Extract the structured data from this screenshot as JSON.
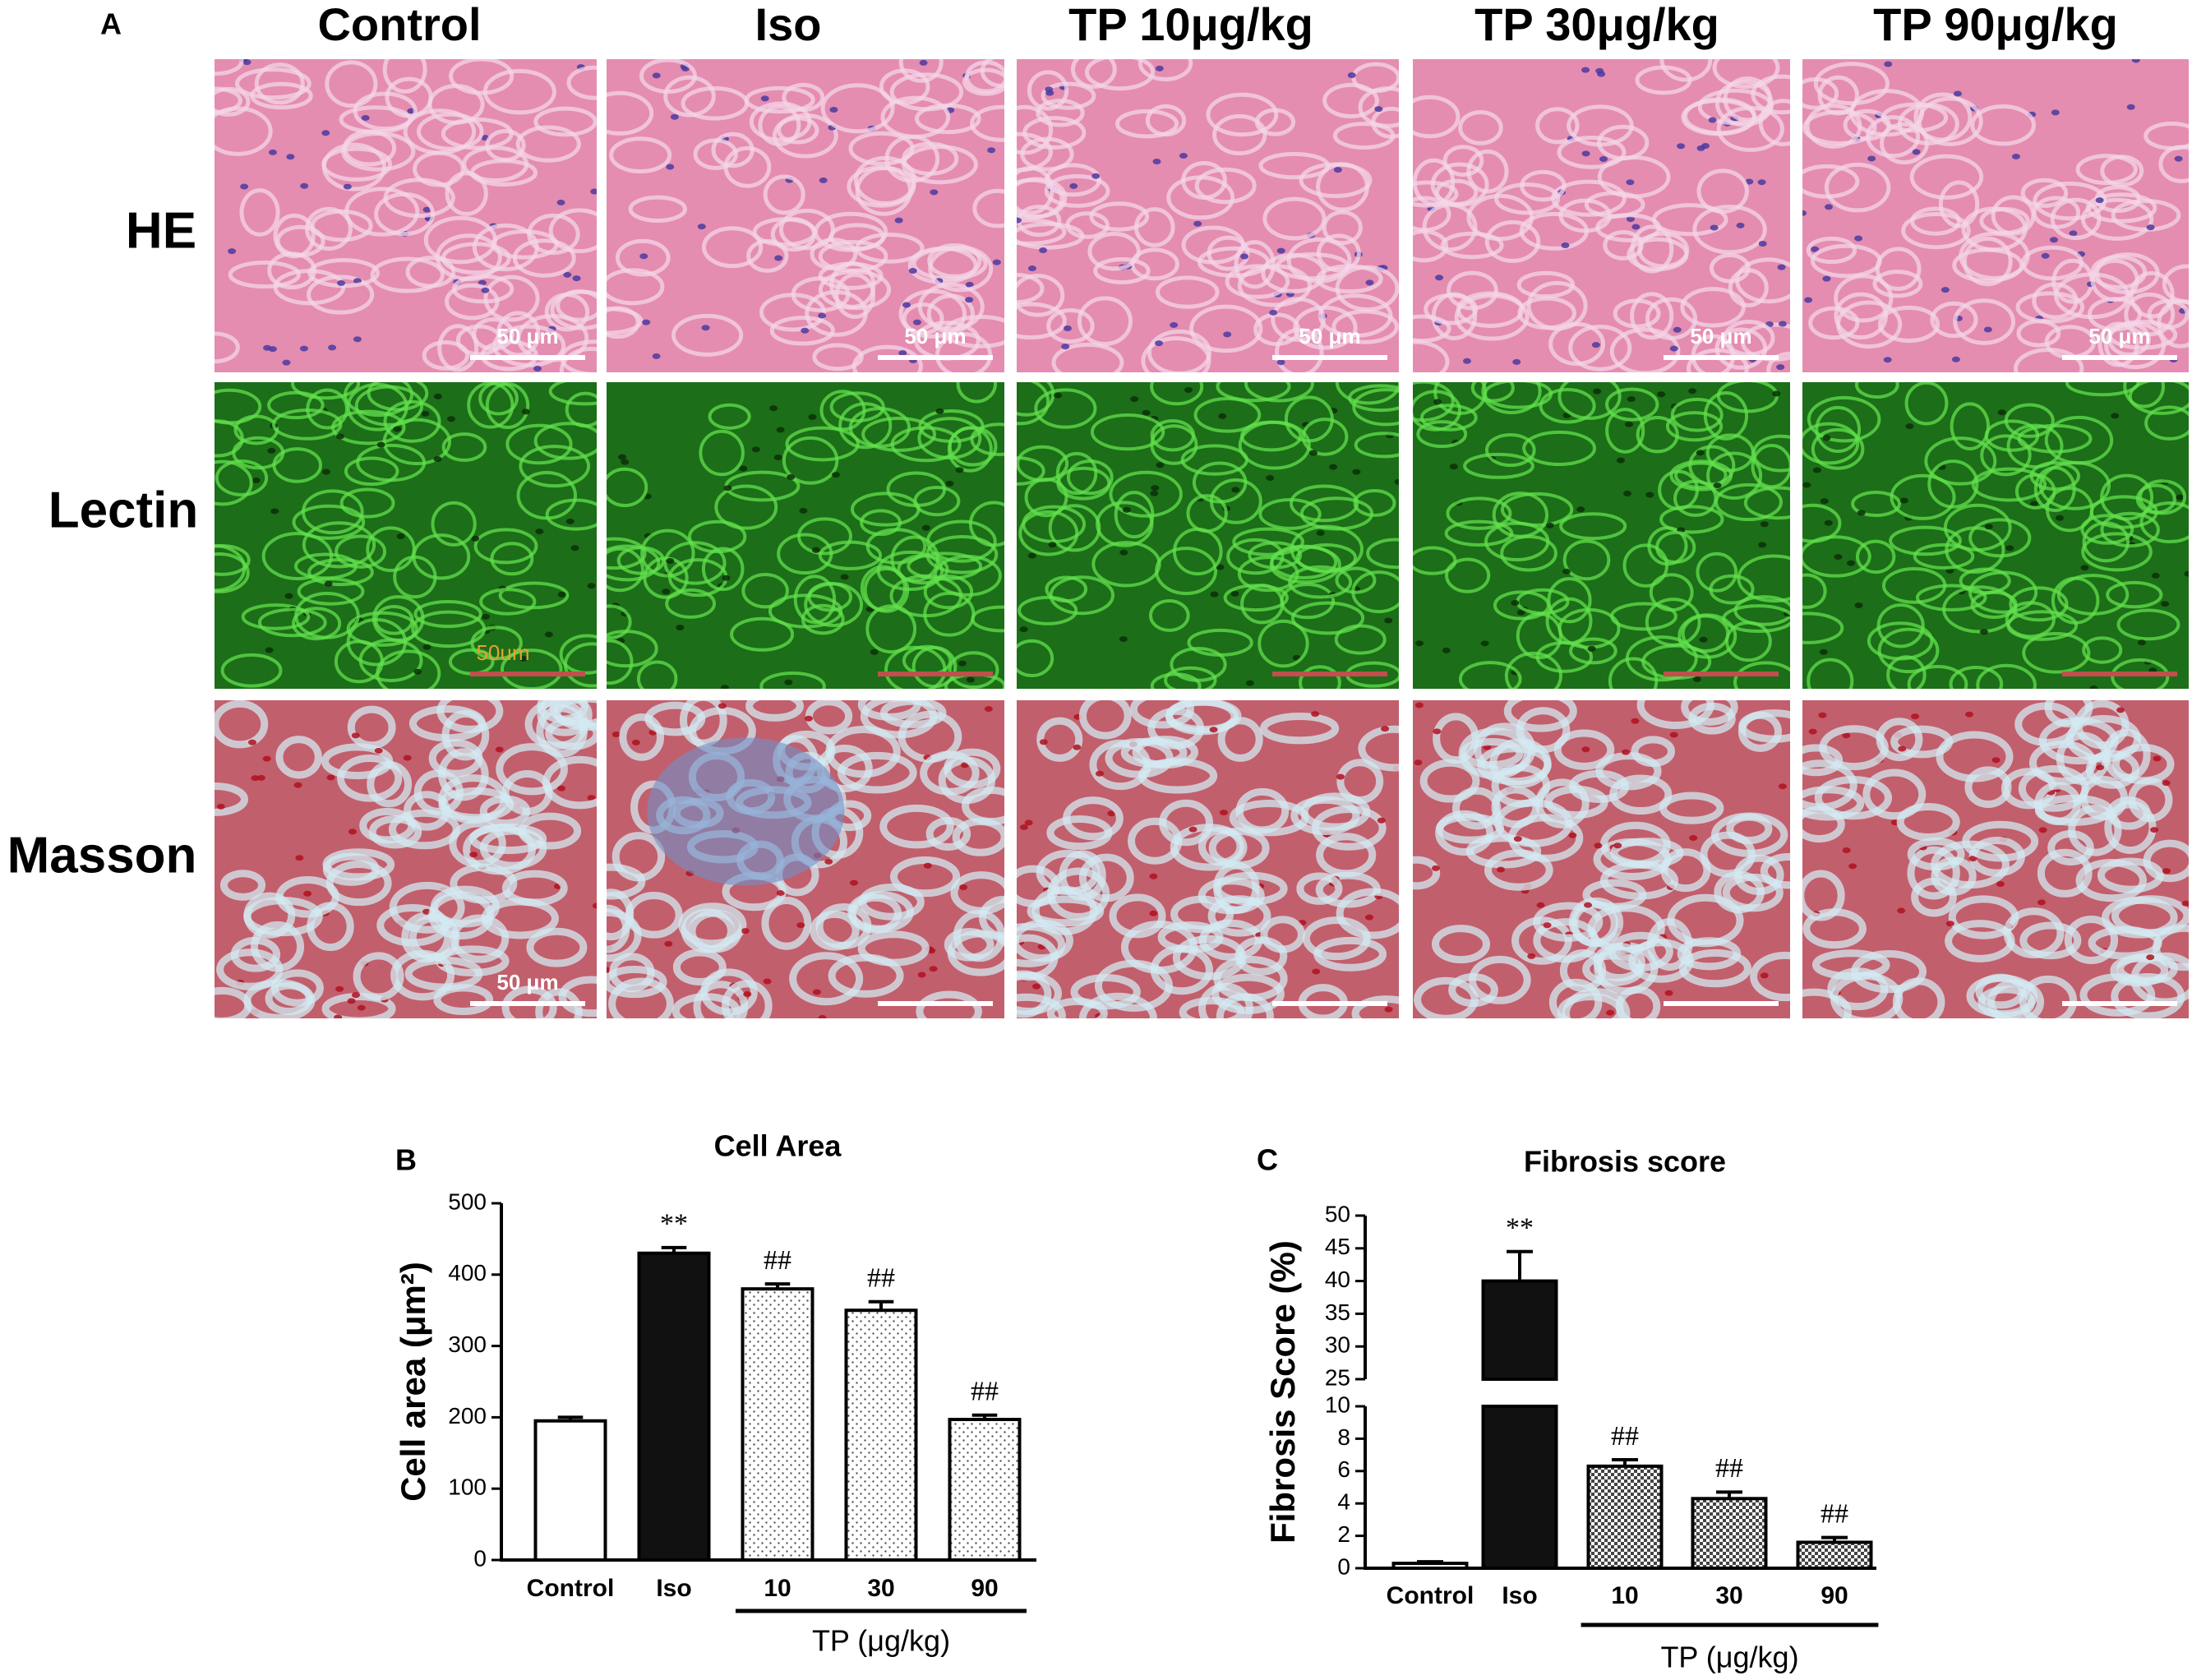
{
  "figure": {
    "panel": "A",
    "columns": [
      "Control",
      "Iso",
      "TP 10μg/kg",
      "TP 30μg/kg",
      "TP 90μg/kg"
    ],
    "rows": [
      {
        "label": "HE",
        "stain": "he",
        "scale_color": "#ffffff",
        "scale_labels": [
          "50 μm",
          "50 μm",
          "50 μm",
          "50 μm",
          "50 μm"
        ]
      },
      {
        "label": "Lectin",
        "stain": "lectin",
        "scale_color": "#c0504d",
        "scale_labels": [
          "50um",
          null,
          null,
          null,
          null
        ]
      },
      {
        "label": "Masson",
        "stain": "masson",
        "scale_color": "#ffffff",
        "scale_labels": [
          "50 μm",
          null,
          null,
          null,
          null
        ]
      }
    ]
  },
  "chart_data": [
    {
      "type": "bar",
      "panel": "B",
      "title": "Cell Area",
      "y_label": "Cell area (μm²)",
      "categories": [
        "Control",
        "Iso",
        "10",
        "30",
        "90"
      ],
      "x_group_label": "TP (μg/kg)",
      "values": [
        195,
        430,
        380,
        350,
        197
      ],
      "errors": [
        5,
        8,
        7,
        12,
        6
      ],
      "annotations": [
        null,
        "**",
        "##",
        "##",
        "##"
      ],
      "fills": [
        "white",
        "black",
        "dots",
        "dots",
        "dots"
      ],
      "ylim": [
        0,
        500
      ],
      "yticks": [
        0,
        100,
        200,
        300,
        400,
        500
      ]
    },
    {
      "type": "bar",
      "panel": "C",
      "title": "Fibrosis score",
      "y_label": "Fibrosis Score (%)",
      "categories": [
        "Control",
        "Iso",
        "10",
        "30",
        "90"
      ],
      "x_group_label": "TP (μg/kg)",
      "values": [
        0.3,
        40,
        6.3,
        4.3,
        1.6
      ],
      "errors": [
        0.1,
        4.5,
        0.4,
        0.4,
        0.3
      ],
      "annotations": [
        null,
        "**",
        "##",
        "##",
        "##"
      ],
      "fills": [
        "white",
        "black",
        "checker",
        "checker",
        "checker"
      ],
      "ylim": [
        0,
        50
      ],
      "ybreak": [
        10,
        25
      ],
      "yticks": [
        0,
        2,
        4,
        6,
        8,
        10,
        25,
        30,
        35,
        40,
        45,
        50
      ]
    }
  ]
}
